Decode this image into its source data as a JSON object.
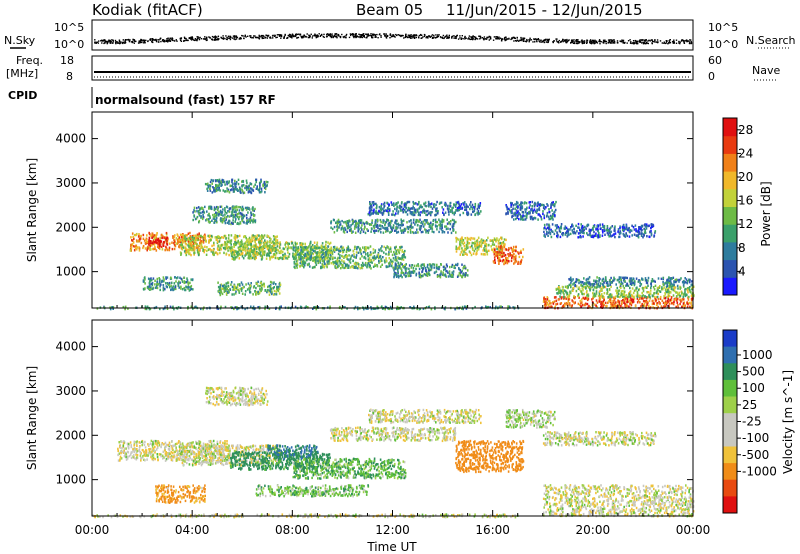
{
  "header": {
    "station": "Kodiak (fitACF)",
    "beam": "Beam 05",
    "date_range": "11/Jun/2015 - 12/Jun/2015"
  },
  "top_strip": {
    "left_label": "N.Sky",
    "right_label": "N.Search",
    "left_ticks": [
      "10^5",
      "10^0"
    ],
    "right_ticks": [
      "10^5",
      "10^0"
    ]
  },
  "freq_strip": {
    "left_label_line1": "Freq.",
    "left_label_line2": "[MHz]",
    "right_label": "Nave",
    "left_ticks": [
      "18",
      "8"
    ],
    "right_ticks": [
      "60",
      "0"
    ]
  },
  "cpid": {
    "label": "CPID",
    "text": "normalsound (fast) 157 RF"
  },
  "colors": {
    "power_scale": [
      "#1a1aff",
      "#2b54b0",
      "#2e7c9e",
      "#3aa06a",
      "#6dbb45",
      "#c2d23a",
      "#f0b82a",
      "#f08018",
      "#e83a10",
      "#e01010"
    ],
    "velocity_scale": [
      "#1a3cc8",
      "#2f6fb0",
      "#2e8f5a",
      "#5fbf3a",
      "#9ed04a",
      "#c8c8c0",
      "#c8c8c0",
      "#f0c23a",
      "#f08c18",
      "#e84a10",
      "#e01010"
    ]
  },
  "chart_data": [
    {
      "type": "heatmap",
      "title": "Power",
      "ylabel": "Slant Range [km]",
      "xlabel": "",
      "colorbar_label": "Power [dB]",
      "colorbar_ticks": [
        "28",
        "24",
        "20",
        "16",
        "12",
        "8",
        "4"
      ],
      "colorbar_range": [
        0,
        30
      ],
      "x_ticks": [
        "00:00",
        "04:00",
        "08:00",
        "12:00",
        "16:00",
        "20:00",
        "00:00"
      ],
      "xlim_hours": [
        0,
        24
      ],
      "y_ticks": [
        "1000",
        "2000",
        "3000",
        "4000"
      ],
      "ylim": [
        180,
        4600
      ],
      "regions": [
        {
          "t0": 1.5,
          "t1": 4.5,
          "r0": 1500,
          "r1": 1900,
          "v": 22
        },
        {
          "t0": 2.2,
          "t1": 3.0,
          "r0": 1600,
          "r1": 1800,
          "v": 29
        },
        {
          "t0": 3.5,
          "t1": 7.5,
          "r0": 1400,
          "r1": 1850,
          "v": 16
        },
        {
          "t0": 4.0,
          "t1": 6.5,
          "r0": 2100,
          "r1": 2500,
          "v": 10
        },
        {
          "t0": 4.5,
          "t1": 7.0,
          "r0": 2800,
          "r1": 3100,
          "v": 8
        },
        {
          "t0": 5.5,
          "t1": 9.5,
          "r0": 1300,
          "r1": 1700,
          "v": 14
        },
        {
          "t0": 5.0,
          "t1": 7.5,
          "r0": 500,
          "r1": 800,
          "v": 12
        },
        {
          "t0": 8.0,
          "t1": 12.5,
          "r0": 1100,
          "r1": 1600,
          "v": 12
        },
        {
          "t0": 9.5,
          "t1": 14.5,
          "r0": 1900,
          "r1": 2200,
          "v": 9
        },
        {
          "t0": 11.0,
          "t1": 15.5,
          "r0": 2300,
          "r1": 2600,
          "v": 7
        },
        {
          "t0": 14.5,
          "t1": 16.5,
          "r0": 1400,
          "r1": 1800,
          "v": 16
        },
        {
          "t0": 16.0,
          "t1": 17.2,
          "r0": 1200,
          "r1": 1600,
          "v": 24
        },
        {
          "t0": 16.5,
          "t1": 18.5,
          "r0": 2200,
          "r1": 2600,
          "v": 6
        },
        {
          "t0": 18.0,
          "t1": 22.5,
          "r0": 1800,
          "r1": 2100,
          "v": 6
        },
        {
          "t0": 18.0,
          "t1": 24.0,
          "r0": 200,
          "r1": 450,
          "v": 24
        },
        {
          "t0": 18.5,
          "t1": 24.0,
          "r0": 450,
          "r1": 700,
          "v": 14
        },
        {
          "t0": 19.0,
          "t1": 24.0,
          "r0": 700,
          "r1": 900,
          "v": 8
        },
        {
          "t0": 0.0,
          "t1": 17.0,
          "r0": 180,
          "r1": 240,
          "v": 10
        },
        {
          "t0": 2.0,
          "t1": 4.0,
          "r0": 600,
          "r1": 900,
          "v": 10
        },
        {
          "t0": 12.0,
          "t1": 15.0,
          "r0": 900,
          "r1": 1200,
          "v": 9
        }
      ]
    },
    {
      "type": "heatmap",
      "title": "Velocity",
      "ylabel": "Slant Range [km]",
      "xlabel": "Time UT",
      "colorbar_label": "Velocity [m s^-1]",
      "colorbar_ticks": [
        "1000",
        "500",
        "100",
        "25",
        "-25",
        "-100",
        "-500",
        "-1000"
      ],
      "x_ticks": [
        "00:00",
        "04:00",
        "08:00",
        "12:00",
        "16:00",
        "20:00",
        "00:00"
      ],
      "xlim_hours": [
        0,
        24
      ],
      "y_ticks": [
        "1000",
        "2000",
        "3000",
        "4000"
      ],
      "ylim": [
        180,
        4600
      ],
      "regions": [
        {
          "t0": 1.0,
          "t1": 5.5,
          "r0": 1450,
          "r1": 1900,
          "v": 0
        },
        {
          "t0": 3.5,
          "t1": 7.5,
          "r0": 1350,
          "r1": 1800,
          "v": 0
        },
        {
          "t0": 5.5,
          "t1": 9.5,
          "r0": 1250,
          "r1": 1650,
          "v": 150
        },
        {
          "t0": 7.0,
          "t1": 9.0,
          "r0": 1500,
          "r1": 1800,
          "v": 300
        },
        {
          "t0": 8.0,
          "t1": 12.5,
          "r0": 1050,
          "r1": 1500,
          "v": 80
        },
        {
          "t0": 9.5,
          "t1": 14.5,
          "r0": 1900,
          "r1": 2200,
          "v": 0
        },
        {
          "t0": 11.0,
          "t1": 15.5,
          "r0": 2300,
          "r1": 2600,
          "v": 0
        },
        {
          "t0": 4.5,
          "t1": 7.0,
          "r0": 2700,
          "r1": 3100,
          "v": 0
        },
        {
          "t0": 14.5,
          "t1": 17.2,
          "r0": 1200,
          "r1": 1900,
          "v": -150
        },
        {
          "t0": 2.5,
          "t1": 4.5,
          "r0": 500,
          "r1": 900,
          "v": -80
        },
        {
          "t0": 6.5,
          "t1": 11.0,
          "r0": 650,
          "r1": 900,
          "v": 60
        },
        {
          "t0": 18.0,
          "t1": 24.0,
          "r0": 200,
          "r1": 900,
          "v": 0
        },
        {
          "t0": 0.0,
          "t1": 17.0,
          "r0": 180,
          "r1": 240,
          "v": 0
        },
        {
          "t0": 16.5,
          "t1": 18.5,
          "r0": 2200,
          "r1": 2600,
          "v": 30
        },
        {
          "t0": 18.0,
          "t1": 22.5,
          "r0": 1800,
          "r1": 2100,
          "v": 0
        }
      ]
    }
  ]
}
